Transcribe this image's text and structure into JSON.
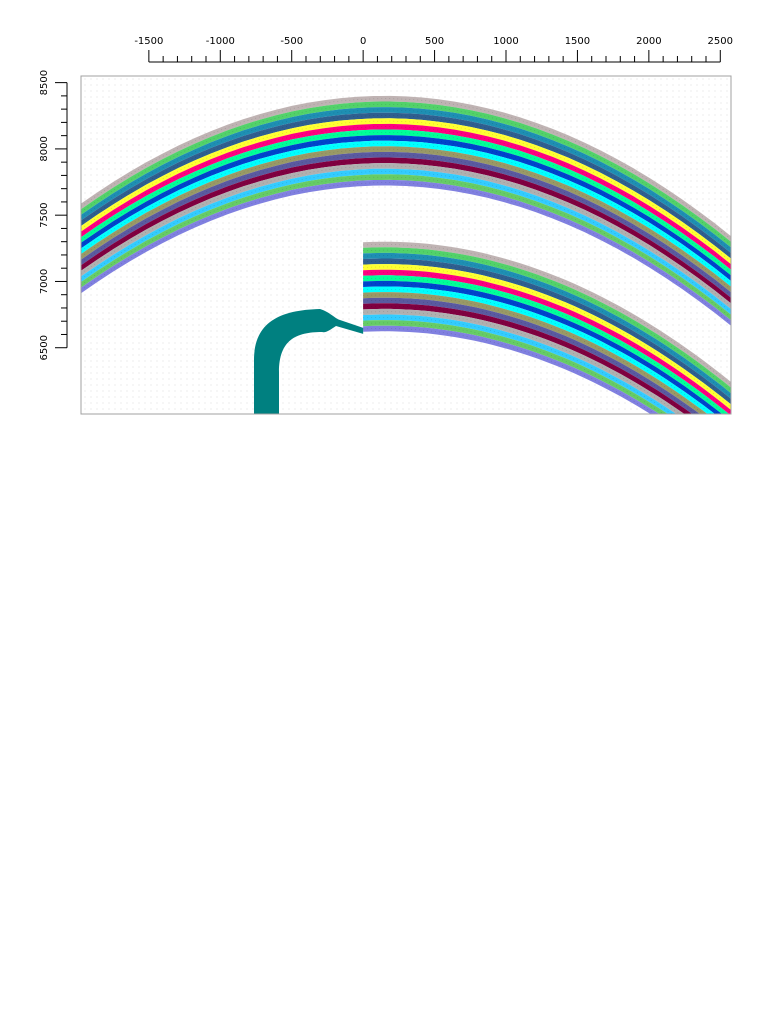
{
  "figure": {
    "type": "geologic-cross-section",
    "x_axis": {
      "position": "top",
      "range": [
        -1975,
        2575
      ],
      "major_step": 500,
      "minor_step": 100,
      "tick_labels": [
        "-1500",
        "-1000",
        "-500",
        "0",
        "500",
        "1000",
        "1500",
        "2000",
        "2500"
      ],
      "tick_values": [
        -1500,
        -1000,
        -500,
        0,
        500,
        1000,
        1500,
        2000,
        2500
      ]
    },
    "y_axis": {
      "position": "left",
      "label_rotation": "vertical",
      "range": [
        6000,
        8550
      ],
      "major_step": 500,
      "minor_step": 100,
      "tick_labels": [
        "6500",
        "7000",
        "7500",
        "8000",
        "8500"
      ],
      "tick_values": [
        6500,
        7000,
        7500,
        8000,
        8500
      ]
    },
    "background": {
      "color": "#ffffff",
      "dotted_grid": true,
      "grid_color": "#c8c8c8"
    },
    "frame_color": "#a0a0a0",
    "layer_colors": [
      "#bfb3b3",
      "#52d26a",
      "#1e8fb3",
      "#2f5f8f",
      "#ffff33",
      "#ff0080",
      "#00ff99",
      "#0044cc",
      "#00ffff",
      "#999966",
      "#5a5aa0",
      "#800040",
      "#b0b0b0",
      "#33ccff",
      "#66cc66",
      "#8080e0"
    ],
    "upper_block": {
      "x_start": -1975,
      "x_end": 2575,
      "apex_x": 150,
      "top_depth": 8400,
      "curvature": 1.8e-07
    },
    "lower_block": {
      "x_start": 0,
      "x_end": 2575,
      "apex_x": 150,
      "top_depth": 7300,
      "curvature": 1.8e-07
    },
    "intrusion": {
      "color": "#008080",
      "label": ""
    }
  }
}
